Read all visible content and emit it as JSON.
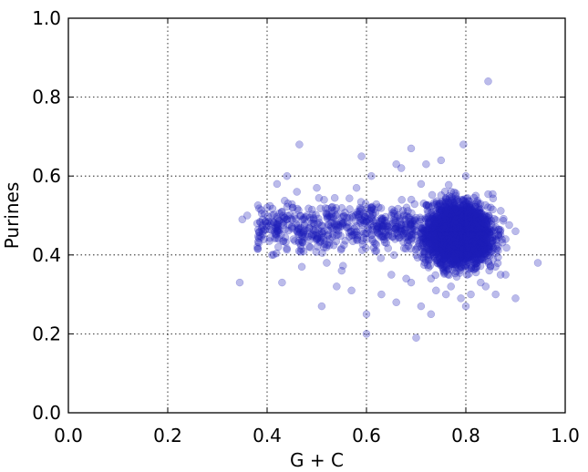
{
  "chart_data": {
    "type": "scatter",
    "title": "",
    "xlabel": "G + C",
    "ylabel": "Purines",
    "xlim": [
      0.0,
      1.0
    ],
    "ylim": [
      0.0,
      1.0
    ],
    "xticks": [
      "0.0",
      "0.2",
      "0.4",
      "0.6",
      "0.8",
      "1.0"
    ],
    "yticks": [
      "0.0",
      "0.2",
      "0.4",
      "0.6",
      "0.8",
      "1.0"
    ],
    "grid": true,
    "marker_color": "#1f1fb8",
    "marker_alpha": 0.3,
    "series": [
      {
        "points_x": [
          0.35,
          0.345,
          0.36,
          0.38,
          0.39,
          0.4,
          0.41,
          0.42,
          0.43,
          0.44,
          0.45,
          0.465,
          0.47,
          0.48,
          0.49,
          0.5,
          0.51,
          0.52,
          0.53,
          0.54,
          0.55,
          0.56,
          0.57,
          0.58,
          0.59,
          0.6,
          0.6,
          0.61,
          0.62,
          0.63,
          0.64,
          0.65,
          0.66,
          0.67,
          0.68,
          0.69,
          0.7,
          0.71,
          0.72,
          0.73,
          0.74,
          0.75,
          0.76,
          0.77,
          0.78,
          0.79,
          0.8,
          0.81,
          0.82,
          0.83,
          0.84,
          0.845,
          0.85,
          0.86,
          0.87,
          0.88,
          0.9,
          0.945,
          0.42,
          0.44,
          0.46,
          0.5,
          0.52,
          0.55,
          0.58,
          0.62,
          0.65,
          0.68,
          0.7,
          0.72,
          0.75,
          0.78,
          0.8,
          0.82,
          0.85,
          0.87,
          0.9,
          0.41,
          0.43,
          0.47,
          0.51,
          0.54,
          0.57,
          0.6,
          0.63,
          0.66,
          0.69,
          0.71,
          0.73,
          0.74,
          0.76,
          0.77,
          0.79,
          0.81,
          0.83,
          0.84,
          0.86,
          0.88,
          0.59,
          0.61,
          0.67,
          0.69,
          0.71,
          0.795,
          0.7,
          0.73,
          0.66,
          0.8
        ],
        "points_y": [
          0.49,
          0.33,
          0.5,
          0.48,
          0.47,
          0.52,
          0.5,
          0.46,
          0.51,
          0.49,
          0.47,
          0.68,
          0.45,
          0.5,
          0.48,
          0.44,
          0.46,
          0.5,
          0.52,
          0.45,
          0.48,
          0.47,
          0.5,
          0.45,
          0.46,
          0.2,
          0.44,
          0.52,
          0.48,
          0.46,
          0.43,
          0.5,
          0.47,
          0.45,
          0.48,
          0.44,
          0.46,
          0.49,
          0.47,
          0.45,
          0.48,
          0.46,
          0.47,
          0.45,
          0.44,
          0.46,
          0.48,
          0.45,
          0.47,
          0.44,
          0.46,
          0.84,
          0.43,
          0.47,
          0.45,
          0.44,
          0.46,
          0.38,
          0.58,
          0.6,
          0.56,
          0.57,
          0.38,
          0.36,
          0.57,
          0.41,
          0.35,
          0.34,
          0.4,
          0.63,
          0.64,
          0.55,
          0.6,
          0.55,
          0.52,
          0.35,
          0.29,
          0.4,
          0.33,
          0.37,
          0.27,
          0.32,
          0.31,
          0.25,
          0.3,
          0.28,
          0.33,
          0.27,
          0.34,
          0.31,
          0.3,
          0.32,
          0.29,
          0.3,
          0.33,
          0.32,
          0.3,
          0.35,
          0.65,
          0.6,
          0.62,
          0.67,
          0.58,
          0.68,
          0.19,
          0.25,
          0.63,
          0.27
        ]
      }
    ]
  }
}
